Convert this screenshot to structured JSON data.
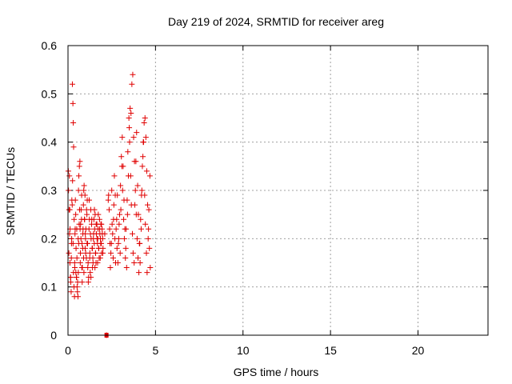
{
  "chart_data": {
    "type": "scatter",
    "title": "Day 219 of 2024, SRMTID for receiver areg",
    "xlabel": "GPS time / hours",
    "ylabel": "SRMTID / TECUs",
    "xlim": [
      0,
      24
    ],
    "ylim": [
      0,
      0.6
    ],
    "xticks": [
      0,
      5,
      10,
      15,
      20
    ],
    "yticks": [
      0,
      0.1,
      0.2,
      0.3,
      0.4,
      0.5,
      0.6
    ],
    "xtick_labels": [
      "0",
      "5",
      "10",
      "15",
      "20"
    ],
    "ytick_labels": [
      "0",
      "0.1",
      "0.2",
      "0.3",
      "0.4",
      "0.5",
      "0.6"
    ],
    "grid": true,
    "marker": "+",
    "color": "#e00000",
    "flags": [
      {
        "x": 2.2,
        "y": 0.0
      }
    ],
    "series": [
      {
        "name": "SRMTID",
        "x": [
          0.02,
          0.05,
          0.08,
          0.1,
          0.12,
          0.15,
          0.18,
          0.2,
          0.22,
          0.25,
          0.28,
          0.3,
          0.32,
          0.35,
          0.38,
          0.4,
          0.42,
          0.45,
          0.48,
          0.5,
          0.52,
          0.55,
          0.58,
          0.6,
          0.62,
          0.65,
          0.68,
          0.7,
          0.72,
          0.75,
          0.78,
          0.8,
          0.82,
          0.85,
          0.88,
          0.9,
          0.92,
          0.95,
          0.98,
          1.0,
          1.02,
          1.05,
          1.08,
          1.1,
          1.12,
          1.15,
          1.18,
          1.2,
          1.22,
          1.25,
          1.28,
          1.3,
          1.32,
          1.35,
          1.38,
          1.4,
          1.42,
          1.45,
          1.48,
          1.5,
          1.52,
          1.55,
          1.58,
          1.6,
          1.62,
          1.65,
          1.68,
          1.7,
          1.72,
          1.75,
          1.78,
          1.8,
          1.82,
          1.85,
          1.88,
          1.9,
          1.92,
          1.95,
          1.98,
          2.0,
          2.1,
          2.2,
          2.3,
          2.35,
          2.4,
          2.45,
          2.5,
          2.55,
          2.6,
          2.65,
          2.7,
          2.75,
          2.8,
          2.85,
          2.9,
          2.95,
          3.0,
          3.05,
          3.1,
          3.15,
          3.2,
          3.25,
          3.3,
          3.35,
          3.4,
          3.45,
          3.5,
          3.55,
          3.6,
          3.65,
          3.7,
          3.75,
          3.8,
          3.85,
          3.9,
          3.95,
          4.0,
          4.05,
          4.1,
          4.15,
          4.2,
          4.25,
          4.3,
          4.35,
          4.4,
          4.45,
          4.5,
          4.55,
          4.6,
          4.65,
          4.7,
          0.03,
          0.06,
          0.09,
          0.11,
          0.14,
          0.16,
          0.19,
          0.21,
          0.24,
          0.26,
          0.29,
          0.31,
          0.34,
          0.37,
          0.39,
          0.41,
          0.44,
          0.46,
          0.49,
          0.51,
          0.54,
          0.57,
          0.59,
          0.61,
          0.64,
          0.66,
          0.69,
          0.71,
          0.74,
          0.77,
          0.79,
          0.81,
          0.84,
          0.86,
          0.89,
          0.91,
          0.94,
          0.97,
          0.99,
          1.01,
          1.06,
          1.09,
          1.13,
          1.16,
          1.21,
          1.24,
          1.27,
          1.31,
          1.36,
          1.39,
          1.43,
          1.46,
          1.51,
          1.54,
          1.57,
          1.61,
          1.66,
          1.69,
          1.73,
          1.76,
          1.81,
          1.84,
          1.87,
          1.91,
          1.96,
          1.99,
          2.32,
          2.38,
          2.42,
          2.48,
          2.52,
          2.58,
          2.62,
          2.68,
          2.72,
          2.78,
          2.82,
          2.88,
          2.92,
          2.98,
          3.02,
          3.08,
          3.12,
          3.18,
          3.22,
          3.28,
          3.32,
          3.38,
          3.42,
          3.48,
          3.52,
          3.58,
          3.62,
          3.68,
          3.72,
          3.78,
          3.82,
          3.88,
          3.92,
          3.98,
          4.02,
          4.08,
          4.12,
          4.18,
          4.22,
          4.28,
          4.32,
          4.38,
          4.42,
          4.48,
          4.52,
          4.58,
          4.62,
          4.68
        ],
        "y": [
          0.34,
          0.17,
          0.33,
          0.26,
          0.22,
          0.12,
          0.09,
          0.19,
          0.28,
          0.52,
          0.48,
          0.44,
          0.39,
          0.24,
          0.15,
          0.21,
          0.28,
          0.13,
          0.12,
          0.22,
          0.1,
          0.11,
          0.2,
          0.3,
          0.33,
          0.35,
          0.36,
          0.15,
          0.23,
          0.26,
          0.29,
          0.19,
          0.14,
          0.21,
          0.27,
          0.3,
          0.31,
          0.24,
          0.18,
          0.2,
          0.22,
          0.16,
          0.25,
          0.28,
          0.19,
          0.15,
          0.12,
          0.22,
          0.24,
          0.17,
          0.21,
          0.26,
          0.2,
          0.23,
          0.18,
          0.14,
          0.16,
          0.2,
          0.24,
          0.19,
          0.22,
          0.25,
          0.17,
          0.15,
          0.21,
          0.23,
          0.19,
          0.2,
          0.22,
          0.18,
          0.16,
          0.24,
          0.21,
          0.2,
          0.23,
          0.19,
          0.17,
          0.22,
          0.2,
          0.18,
          0.21,
          0.0,
          0.28,
          0.26,
          0.19,
          0.17,
          0.3,
          0.21,
          0.24,
          0.33,
          0.29,
          0.22,
          0.18,
          0.15,
          0.2,
          0.25,
          0.31,
          0.37,
          0.41,
          0.35,
          0.28,
          0.22,
          0.18,
          0.14,
          0.25,
          0.33,
          0.43,
          0.47,
          0.46,
          0.52,
          0.54,
          0.41,
          0.36,
          0.3,
          0.25,
          0.2,
          0.16,
          0.13,
          0.19,
          0.24,
          0.29,
          0.35,
          0.4,
          0.44,
          0.45,
          0.41,
          0.34,
          0.27,
          0.22,
          0.18,
          0.14,
          0.3,
          0.26,
          0.21,
          0.15,
          0.12,
          0.11,
          0.16,
          0.2,
          0.27,
          0.32,
          0.19,
          0.13,
          0.1,
          0.08,
          0.14,
          0.22,
          0.25,
          0.18,
          0.12,
          0.16,
          0.09,
          0.08,
          0.13,
          0.19,
          0.23,
          0.26,
          0.22,
          0.17,
          0.2,
          0.24,
          0.14,
          0.11,
          0.18,
          0.22,
          0.16,
          0.13,
          0.24,
          0.29,
          0.21,
          0.17,
          0.26,
          0.19,
          0.14,
          0.11,
          0.28,
          0.16,
          0.13,
          0.12,
          0.24,
          0.18,
          0.15,
          0.21,
          0.26,
          0.14,
          0.17,
          0.23,
          0.2,
          0.15,
          0.25,
          0.18,
          0.22,
          0.16,
          0.19,
          0.23,
          0.21,
          0.17,
          0.29,
          0.22,
          0.14,
          0.19,
          0.23,
          0.16,
          0.27,
          0.2,
          0.15,
          0.24,
          0.29,
          0.19,
          0.23,
          0.17,
          0.26,
          0.35,
          0.3,
          0.24,
          0.2,
          0.16,
          0.22,
          0.28,
          0.38,
          0.45,
          0.4,
          0.33,
          0.27,
          0.21,
          0.17,
          0.15,
          0.27,
          0.36,
          0.42,
          0.31,
          0.25,
          0.19,
          0.15,
          0.22,
          0.3,
          0.37,
          0.4,
          0.29,
          0.23,
          0.17,
          0.13,
          0.2,
          0.26,
          0.33
        ]
      }
    ]
  }
}
